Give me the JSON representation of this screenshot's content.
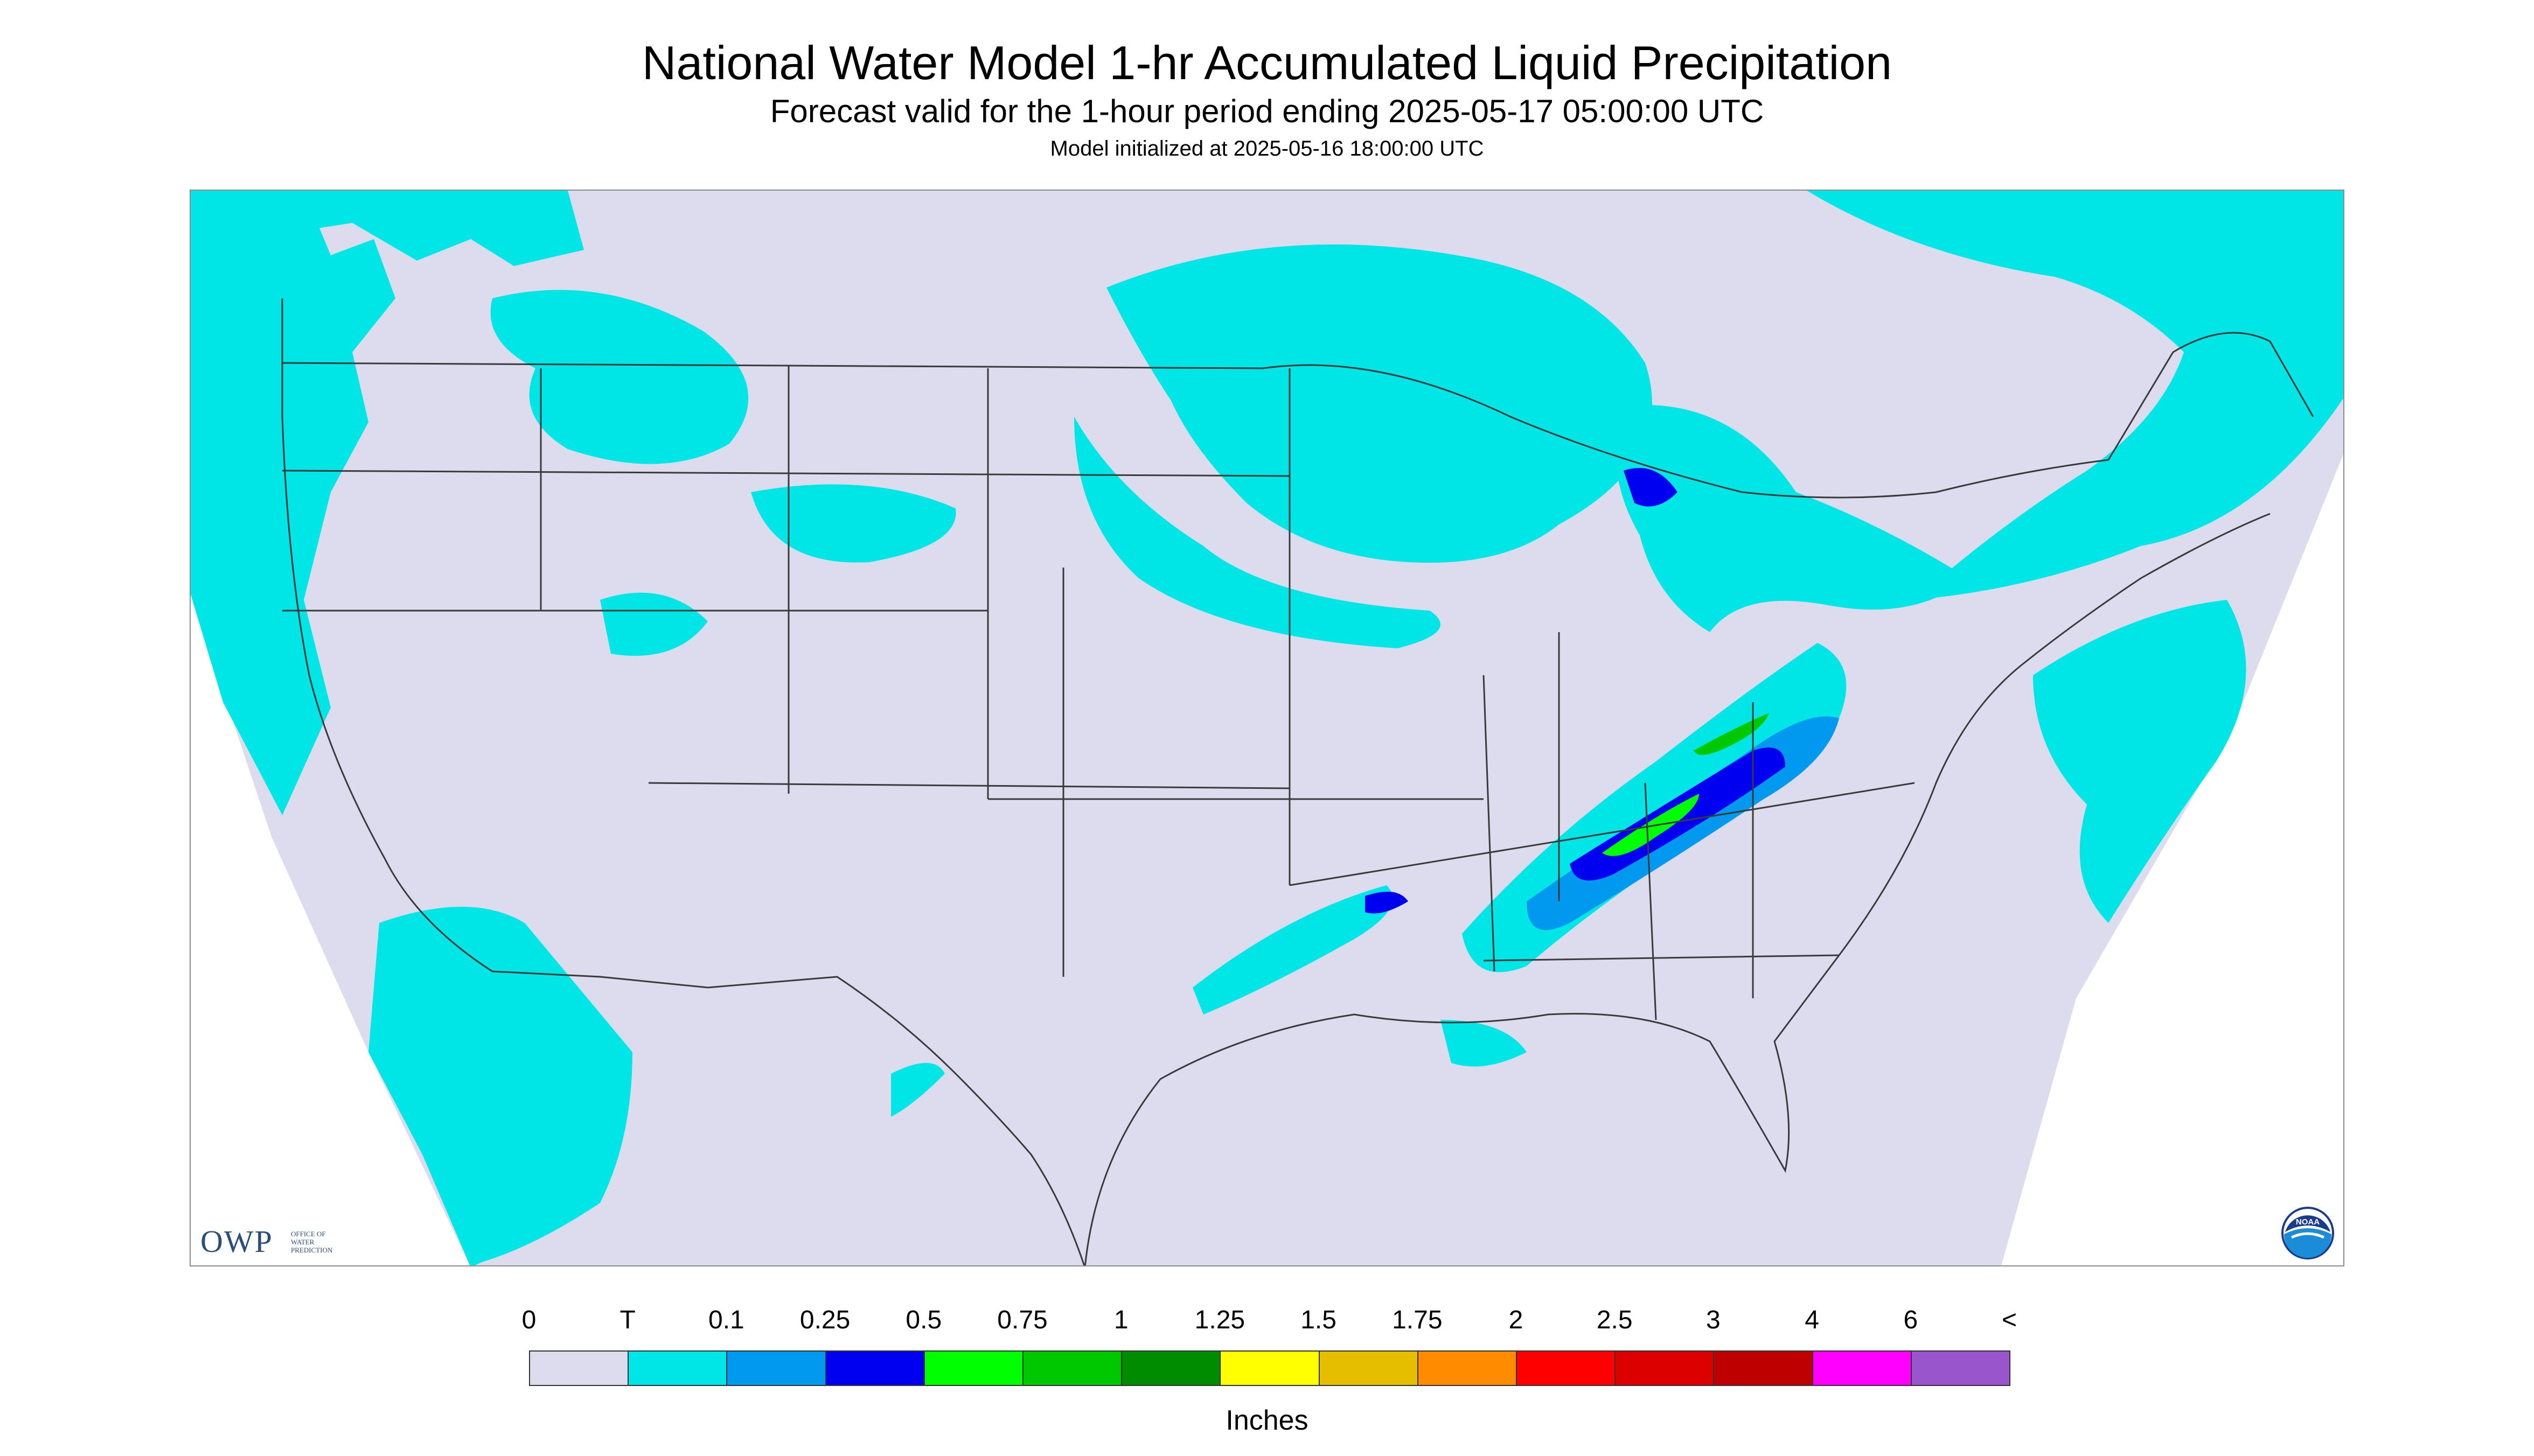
{
  "header": {
    "title": "National Water Model 1-hr Accumulated Liquid Precipitation",
    "subtitle": "Forecast valid for the 1-hour period ending 2025-05-17 05:00:00 UTC",
    "init": "Model initialized at 2025-05-16 18:00:00 UTC"
  },
  "branding": {
    "owp_abbrev": "OWP",
    "owp_line1": "OFFICE OF",
    "owp_line2": "WATER",
    "owp_line3": "PREDICTION",
    "noaa_text": "NOAA"
  },
  "colors": {
    "background": "#ffffff",
    "land": "#dcdcee",
    "trace": "#00e6e6",
    "boundary": "#3a3a3a"
  },
  "legend": {
    "units": "Inches",
    "labels": [
      "0",
      "T",
      "0.1",
      "0.25",
      "0.5",
      "0.75",
      "1",
      "1.25",
      "1.5",
      "1.75",
      "2",
      "2.5",
      "3",
      "4",
      "6",
      "<"
    ],
    "swatches": [
      "#dcdcee",
      "#00e6e6",
      "#0099f0",
      "#0000f0",
      "#00ff00",
      "#00c800",
      "#008c00",
      "#ffff00",
      "#e6be00",
      "#ff8c00",
      "#ff0000",
      "#dc0000",
      "#be0000",
      "#ff00ff",
      "#9955cc"
    ]
  },
  "precip_regions": [
    {
      "category": "T",
      "color": "#00e6e6",
      "area": "Pacific Northwest coast"
    },
    {
      "category": "T",
      "color": "#00e6e6",
      "area": "Northern Rockies and Montana"
    },
    {
      "category": "T",
      "color": "#00e6e6",
      "area": "Upper Midwest swirl (Minnesota / Lake Superior)"
    },
    {
      "category": "T",
      "color": "#00e6e6",
      "area": "Great Lakes and Ohio Valley"
    },
    {
      "category": "0.1",
      "color": "#0099f0",
      "area": "Ohio Valley to Mid-South band"
    },
    {
      "category": "0.25",
      "color": "#0000f0",
      "area": "Kentucky / West Virginia core"
    },
    {
      "category": "0.5",
      "color": "#00ff00",
      "area": "Kentucky and Tennessee cells"
    },
    {
      "category": "0.75",
      "color": "#00c800",
      "area": "Kentucky cells"
    },
    {
      "category": "T",
      "color": "#00e6e6",
      "area": "New England and Quebec"
    },
    {
      "category": "T",
      "color": "#00e6e6",
      "area": "Western Atlantic"
    },
    {
      "category": "T",
      "color": "#00e6e6",
      "area": "Baja California and eastern Pacific"
    },
    {
      "category": "T",
      "color": "#00e6e6",
      "area": "Gulf Coast and northern Mexico"
    }
  ]
}
